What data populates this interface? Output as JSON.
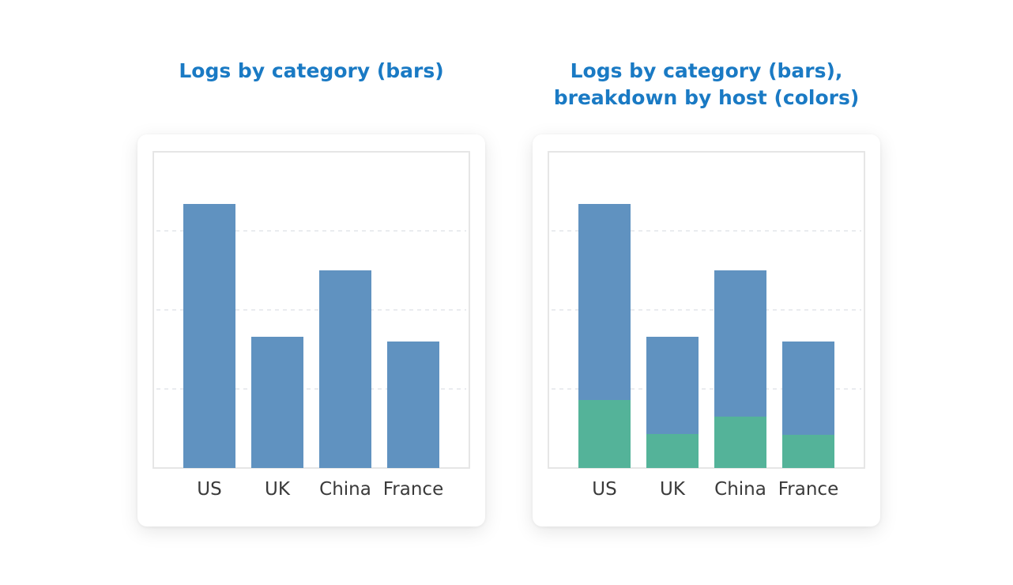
{
  "colors": {
    "title": "#1a7ac4",
    "series_primary": "#6092c0",
    "series_secondary": "#54b399",
    "grid": "#e3e6ea"
  },
  "titles": {
    "left": "Logs by category (bars)",
    "right_line1": "Logs by category (bars),",
    "right_line2": "breakdown by host (colors)"
  },
  "chart_data": [
    {
      "type": "bar",
      "title": "Logs by category (bars)",
      "categories": [
        "US",
        "UK",
        "China",
        "France"
      ],
      "series": [
        {
          "values": [
            3.34,
            1.66,
            2.5,
            1.6
          ]
        }
      ],
      "ylim": [
        0,
        4
      ],
      "grid": true,
      "xlabel": "",
      "ylabel": ""
    },
    {
      "type": "bar",
      "stacked": true,
      "title": "Logs by category (bars), breakdown by host (colors)",
      "categories": [
        "US",
        "UK",
        "China",
        "France"
      ],
      "series": [
        {
          "values": [
            0.86,
            0.43,
            0.65,
            0.42
          ]
        },
        {
          "values": [
            2.48,
            1.23,
            1.85,
            1.18
          ]
        }
      ],
      "ylim": [
        0,
        4
      ],
      "grid": true,
      "xlabel": "",
      "ylabel": ""
    }
  ]
}
